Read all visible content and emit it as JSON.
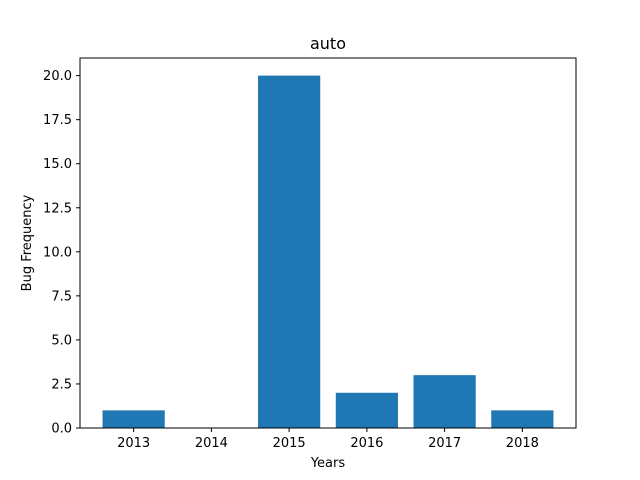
{
  "chart_data": {
    "type": "bar",
    "title": "auto",
    "xlabel": "Years",
    "ylabel": "Bug Frequency",
    "categories": [
      "2013",
      "2014",
      "2015",
      "2016",
      "2017",
      "2018"
    ],
    "values": [
      1,
      0,
      20,
      2,
      3,
      1
    ],
    "ylim": [
      0,
      21
    ],
    "yticks": [
      "0.0",
      "2.5",
      "5.0",
      "7.5",
      "10.0",
      "12.5",
      "15.0",
      "17.5",
      "20.0"
    ],
    "grid": false,
    "bar_color": "#1f77b4"
  }
}
